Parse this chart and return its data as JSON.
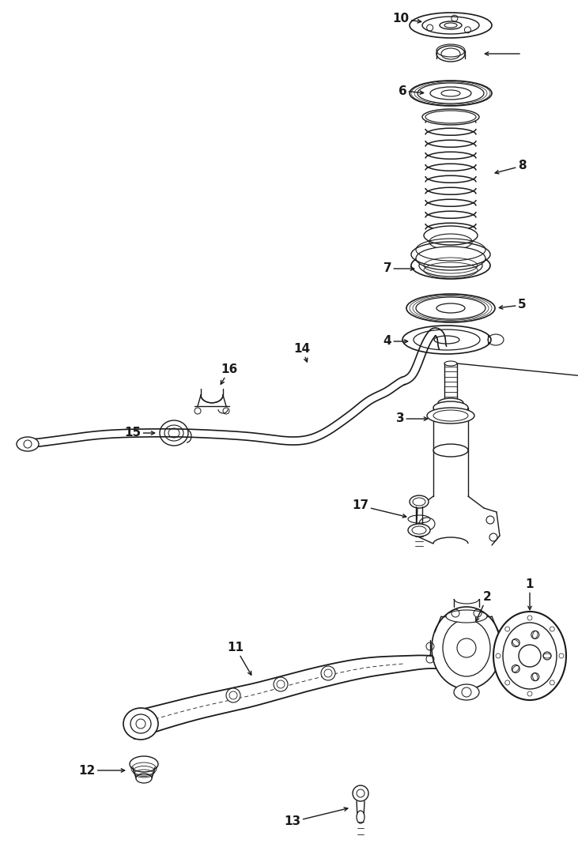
{
  "bg_color": "#ffffff",
  "line_color": "#1a1a1a",
  "fig_width": 7.31,
  "fig_height": 10.77,
  "dpi": 100,
  "label_fontsize": 11,
  "line_width": 1.0
}
